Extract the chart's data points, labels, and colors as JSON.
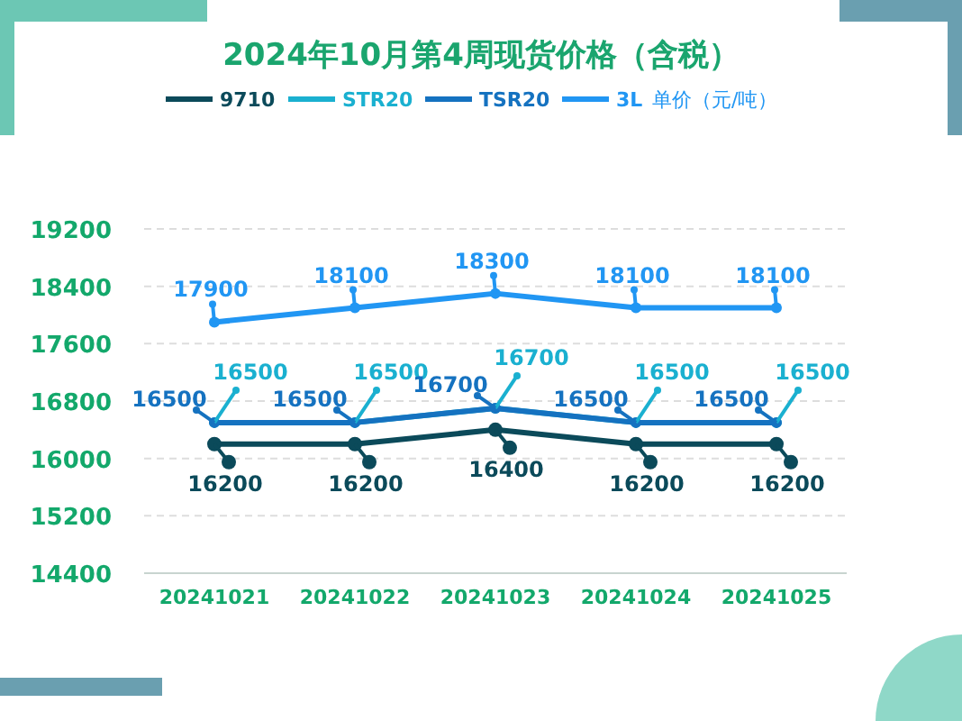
{
  "chart_data": {
    "type": "line",
    "title": "2024年10月第4周现货价格（含税）",
    "annotations": [
      "单价（元/吨）"
    ],
    "categories": [
      "20241021",
      "20241022",
      "20241023",
      "20241024",
      "20241025"
    ],
    "series": [
      {
        "name": "9710",
        "color": "#0b4a5a",
        "values": [
          16200,
          16200,
          16400,
          16200,
          16200
        ]
      },
      {
        "name": "STR20",
        "color": "#1ab0d0",
        "values": [
          16500,
          16500,
          16700,
          16500,
          16500
        ]
      },
      {
        "name": "TSR20",
        "color": "#1572c0",
        "values": [
          16500,
          16500,
          16700,
          16500,
          16500
        ]
      },
      {
        "name": "3L",
        "color": "#2196f3",
        "values": [
          17900,
          18100,
          18300,
          18100,
          18100
        ]
      }
    ],
    "ylim": [
      14400,
      19200
    ],
    "yticks": [
      14400,
      15200,
      16000,
      16800,
      17600,
      18400,
      19200
    ],
    "grid": "y",
    "legend": "top",
    "marker": "circle",
    "line_style": "solid",
    "data_labels": true
  }
}
